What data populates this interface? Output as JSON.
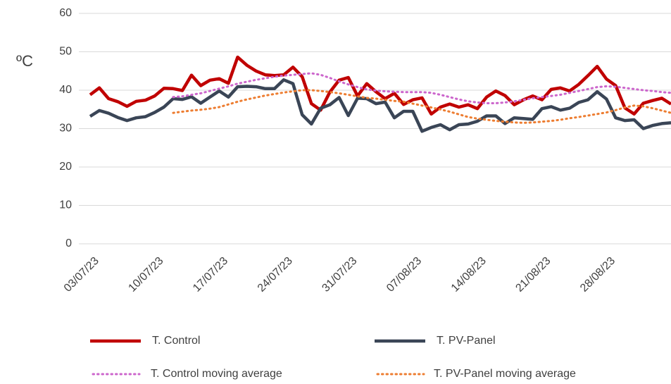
{
  "chart_data": {
    "type": "line",
    "y_label": "ºC",
    "categories": [
      "03/07/23",
      null,
      null,
      null,
      null,
      null,
      null,
      "10/07/23",
      null,
      null,
      null,
      null,
      null,
      null,
      "17/07/23",
      null,
      null,
      null,
      null,
      null,
      null,
      "24/07/23",
      null,
      null,
      null,
      null,
      null,
      null,
      "31/07/23",
      null,
      null,
      null,
      null,
      null,
      null,
      "07/08/23",
      null,
      null,
      null,
      null,
      null,
      null,
      "14/08/23",
      null,
      null,
      null,
      null,
      null,
      null,
      "21/08/23",
      null,
      null,
      null,
      null,
      null,
      null,
      "28/08/23",
      null,
      null,
      null,
      null,
      null,
      null,
      null
    ],
    "series": [
      {
        "name": "T. Control",
        "color": "#c00000",
        "style": "solid",
        "values": [
          38.8,
          40.6,
          37.8,
          37,
          35.8,
          37.1,
          37.4,
          38.5,
          40.5,
          40.4,
          39.9,
          43.9,
          41.2,
          42.6,
          43,
          41.8,
          48.6,
          46.5,
          45,
          44,
          43.8,
          44,
          46,
          43.5,
          36.5,
          34.8,
          39.5,
          42.6,
          43.3,
          38.5,
          41.7,
          39.6,
          37.8,
          39.2,
          36.3,
          37.5,
          38,
          33.8,
          35.6,
          36.4,
          35.6,
          36.2,
          35.2,
          38.2,
          39.8,
          38.6,
          36.2,
          37.5,
          38.5,
          37.5,
          40.2,
          40.6,
          39.8,
          41.5,
          43.8,
          46.2,
          42.9,
          41.2,
          35.4,
          33.8,
          36.6,
          37.3,
          37.9,
          36.4
        ]
      },
      {
        "name": "T. PV-Panel",
        "color": "#3a4556",
        "style": "solid",
        "values": [
          33.2,
          34.7,
          34,
          32.9,
          32.1,
          32.8,
          33.1,
          34.2,
          35.6,
          37.8,
          37.6,
          38.3,
          36.6,
          38.2,
          39.8,
          38.2,
          40.9,
          41,
          40.9,
          40.4,
          40.4,
          42.7,
          41.7,
          33.6,
          31.2,
          35.3,
          36.2,
          38.1,
          33.4,
          37.9,
          37.8,
          36.5,
          36.9,
          32.8,
          34.5,
          34.5,
          29.3,
          30.3,
          31,
          29.7,
          31,
          31.2,
          31.9,
          33.3,
          33.3,
          31.3,
          32.8,
          32.6,
          32.4,
          35.2,
          35.7,
          34.8,
          35.3,
          36.8,
          37.5,
          39.6,
          37.7,
          32.8,
          32.1,
          32.3,
          30,
          30.8,
          31.3,
          31.5
        ]
      },
      {
        "name": "T. Control moving average",
        "color": "#cc66cc",
        "style": "dotted",
        "values": [
          null,
          null,
          null,
          null,
          null,
          null,
          null,
          null,
          null,
          38.2,
          38.4,
          38.8,
          39.2,
          39.8,
          40.4,
          41,
          41.7,
          42.2,
          42.7,
          43.1,
          43.5,
          43.8,
          44,
          44.2,
          44.4,
          44,
          43.2,
          42.3,
          41.5,
          40.8,
          40.2,
          39.9,
          39.7,
          39.6,
          39.5,
          39.5,
          39.5,
          39.3,
          38.8,
          38.2,
          37.6,
          37.1,
          36.8,
          36.6,
          36.6,
          36.8,
          37.1,
          37.5,
          37.9,
          38.2,
          38.5,
          38.8,
          39.3,
          39.8,
          40.3,
          40.8,
          41,
          40.9,
          40.6,
          40.3,
          40,
          39.8,
          39.5,
          39.3
        ]
      },
      {
        "name": "T. PV-Panel moving average",
        "color": "#ed7d31",
        "style": "dotted",
        "values": [
          null,
          null,
          null,
          null,
          null,
          null,
          null,
          null,
          null,
          34.1,
          34.4,
          34.7,
          34.9,
          35.2,
          35.6,
          36.3,
          37,
          37.6,
          38.1,
          38.6,
          39,
          39.4,
          39.7,
          40,
          40,
          39.8,
          39.5,
          39.2,
          38.8,
          38.4,
          38,
          37.8,
          37.5,
          37.2,
          37,
          36.5,
          36,
          35.5,
          35,
          34.4,
          33.7,
          33,
          32.6,
          32.3,
          32,
          31.8,
          31.6,
          31.5,
          31.6,
          31.8,
          32,
          32.3,
          32.7,
          33,
          33.4,
          33.8,
          34.2,
          34.8,
          35.5,
          36,
          35.8,
          35.3,
          34.7,
          34.1
        ]
      }
    ],
    "ylim": [
      0,
      60
    ],
    "yticks": [
      0,
      10,
      20,
      30,
      40,
      50,
      60
    ],
    "grid": true,
    "legend": "bottom"
  }
}
